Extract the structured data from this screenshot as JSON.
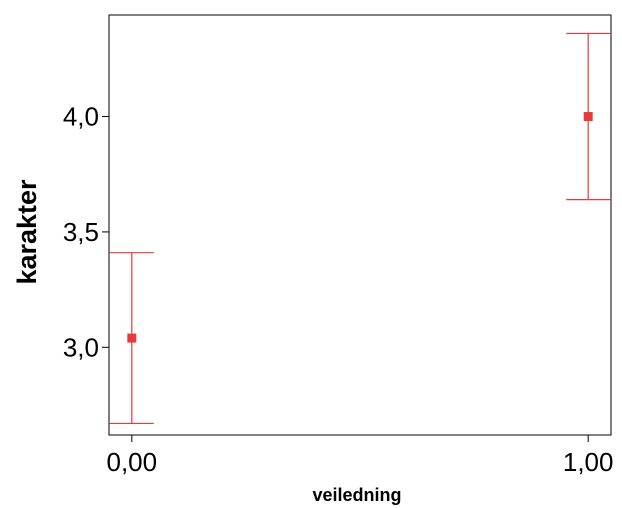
{
  "chart_data": {
    "type": "errorbar",
    "xlabel": "veiledning",
    "ylabel": "karakter",
    "x_ticks": [
      "0,00",
      "1,00"
    ],
    "y_ticks": [
      "3,0",
      "3,5",
      "4,0"
    ],
    "xlim": [
      -0.05,
      1.05
    ],
    "ylim": [
      2.62,
      4.44
    ],
    "grid": false,
    "marker_color": "#e83a3a",
    "series": [
      {
        "points": [
          {
            "x": 0.0,
            "y": 3.04,
            "lower": 2.67,
            "upper": 3.41
          },
          {
            "x": 1.0,
            "y": 4.0,
            "lower": 3.64,
            "upper": 4.36
          }
        ]
      }
    ]
  }
}
